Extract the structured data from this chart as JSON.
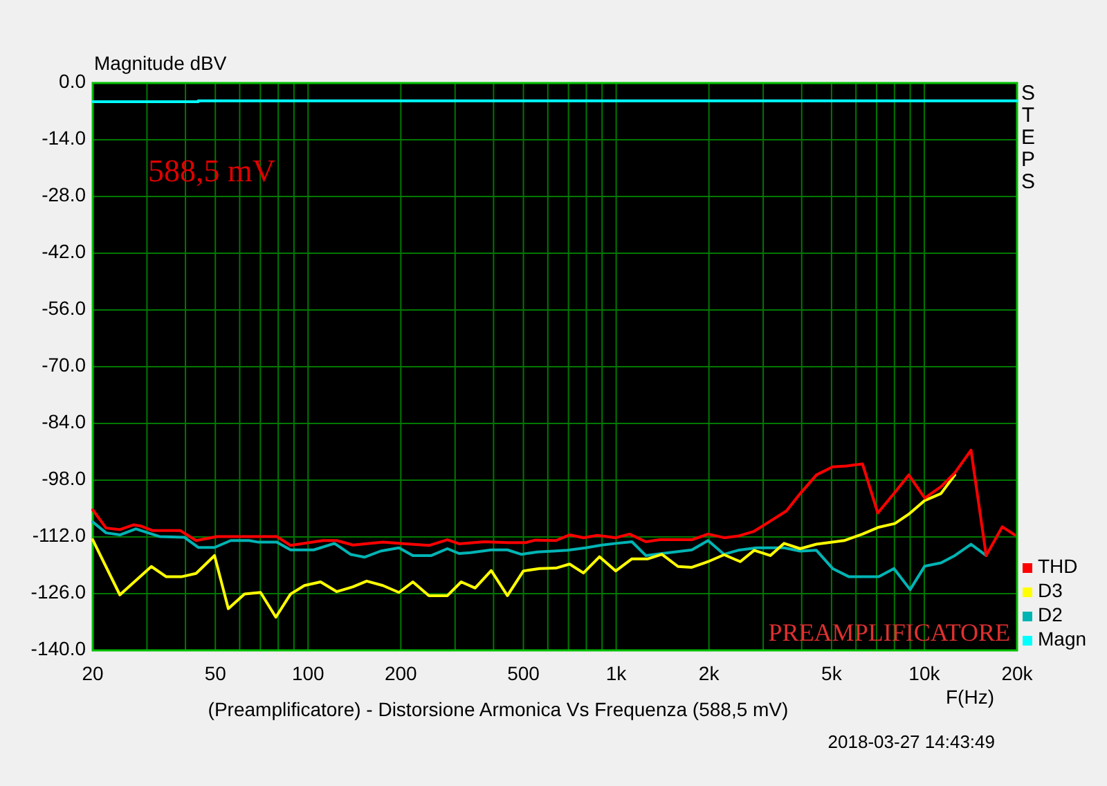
{
  "chart_data": {
    "type": "line",
    "title": "(Preamplificatore) - Distorsione Armonica Vs Frequenza (588,5 mV)",
    "xlabel": "F(Hz)",
    "ylabel": "Magnitude dBV",
    "annotations": [
      "588,5 mV",
      "PREAMPLIFICATORE",
      "STEPS",
      "2018-03-27 14:43:49"
    ],
    "log": "x",
    "grid": true,
    "legend": "right",
    "xlim": [
      20,
      20000
    ],
    "xticks": [
      20,
      {
        "value": 30,
        "label": null
      },
      {
        "value": 40,
        "label": null
      },
      50,
      {
        "value": 60,
        "label": null
      },
      {
        "value": 70,
        "label": null
      },
      {
        "value": 80,
        "label": null
      },
      {
        "value": 90,
        "label": null
      },
      100,
      200,
      {
        "value": 300,
        "label": null
      },
      {
        "value": 400,
        "label": null
      },
      500,
      {
        "value": 600,
        "label": null
      },
      {
        "value": 700,
        "label": null
      },
      {
        "value": 800,
        "label": null
      },
      {
        "value": 900,
        "label": null
      },
      {
        "value": 1000,
        "label": "1k"
      },
      {
        "value": 2000,
        "label": "2k"
      },
      {
        "value": 3000,
        "label": null
      },
      {
        "value": 4000,
        "label": null
      },
      {
        "value": 5000,
        "label": "5k"
      },
      {
        "value": 6000,
        "label": null
      },
      {
        "value": 7000,
        "label": null
      },
      {
        "value": 8000,
        "label": null
      },
      {
        "value": 9000,
        "label": null
      },
      {
        "value": 10000,
        "label": "10k"
      },
      {
        "value": 20000,
        "label": "20k"
      }
    ],
    "ylim": [
      -140,
      0
    ],
    "yticks": [
      {
        "value": -140,
        "label": "-140.0"
      },
      {
        "value": -126,
        "label": "-126.0"
      },
      {
        "value": -112,
        "label": "-112.0"
      },
      {
        "value": -98,
        "label": "-98.0"
      },
      {
        "value": -84,
        "label": "-84.0"
      },
      {
        "value": -70,
        "label": "-70.0"
      },
      {
        "value": -56,
        "label": "-56.0"
      },
      {
        "value": -42,
        "label": "-42.0"
      },
      {
        "value": -28,
        "label": "-28.0"
      },
      {
        "value": -14,
        "label": "-14.0"
      },
      {
        "value": 0,
        "label": "0.0"
      }
    ],
    "series": [
      {
        "name": "THD",
        "color": "#ff0000",
        "x": [
          20,
          22.1,
          24.5,
          27.2,
          28.6,
          31.2,
          38.4,
          43.3,
          50.6,
          79.1,
          87.7,
          111.7,
          123.8,
          139.8,
          174.9,
          207.6,
          246.8,
          283.2,
          309,
          373.2,
          443.6,
          509,
          545.8,
          637,
          706,
          783,
          869,
          997,
          1105,
          1248,
          1384,
          1760,
          1987,
          2240,
          2484,
          2804,
          3164,
          3568,
          3956,
          4466,
          5040,
          5588,
          6302,
          7062,
          7970,
          8900,
          10036,
          11324,
          12562,
          14176,
          15878,
          17904,
          19648
        ],
        "values": [
          -105.3,
          -109.8,
          -110.2,
          -109.0,
          -109.3,
          -110.4,
          -110.4,
          -112.9,
          -111.9,
          -111.9,
          -114.1,
          -112.9,
          -112.9,
          -114.0,
          -113.3,
          -113.7,
          -114.1,
          -112.7,
          -113.7,
          -113.2,
          -113.4,
          -113.4,
          -112.8,
          -112.9,
          -111.5,
          -112.2,
          -111.6,
          -112.2,
          -111.3,
          -113.2,
          -112.7,
          -112.7,
          -111.3,
          -112.2,
          -111.8,
          -110.6,
          -108.1,
          -105.6,
          -101.3,
          -96.7,
          -94.7,
          -94.5,
          -94.0,
          -106.1,
          -101.3,
          -96.7,
          -102.4,
          -99.6,
          -96.2,
          -90.6,
          -116.6,
          -109.5,
          -111.5
        ]
      },
      {
        "name": "D3",
        "color": "#ffff00",
        "x": [
          20,
          24.5,
          31.0,
          34.6,
          39.0,
          43.3,
          49.7,
          55.1,
          62.2,
          70.1,
          78.6,
          87.7,
          97.3,
          109.8,
          123.8,
          139.8,
          155,
          174.9,
          197.2,
          218.8,
          246.8,
          283.2,
          314,
          348.4,
          393,
          443.6,
          500,
          564,
          637,
          706,
          783,
          883,
          997,
          1125,
          1268,
          1407,
          1587,
          1760,
          1987,
          2240,
          2528,
          2804,
          3164,
          3508,
          3956,
          4466,
          5492,
          6302,
          7112,
          8028,
          8900,
          10036,
          11324,
          12562
        ],
        "values": [
          -112.7,
          -126.3,
          -119.3,
          -121.8,
          -121.8,
          -121.0,
          -116.6,
          -129.7,
          -126.1,
          -125.7,
          -131.8,
          -126.1,
          -124.0,
          -123.1,
          -125.5,
          -124.3,
          -122.9,
          -124.0,
          -125.7,
          -123.1,
          -126.5,
          -126.5,
          -123.1,
          -124.6,
          -120.3,
          -126.5,
          -120.4,
          -119.8,
          -119.7,
          -118.7,
          -120.9,
          -116.9,
          -120.4,
          -117.4,
          -117.4,
          -116.3,
          -119.3,
          -119.5,
          -118.1,
          -116.4,
          -118.1,
          -115.3,
          -116.6,
          -113.6,
          -114.9,
          -113.8,
          -112.9,
          -111.3,
          -109.6,
          -108.7,
          -106.4,
          -103.0,
          -101.3,
          -96.7
        ]
      },
      {
        "name": "D2",
        "color": "#00b4b4",
        "x": [
          20,
          22.1,
          24.5,
          27.6,
          32.9,
          39.7,
          44.0,
          49.7,
          56.1,
          64.3,
          69.0,
          79.1,
          87.7,
          104.3,
          121.8,
          137.3,
          152.3,
          171.9,
          197.2,
          218.8,
          251.2,
          283.2,
          309,
          336.6,
          393,
          443.6,
          492,
          554.6,
          626,
          694,
          796,
          899,
          997,
          1125,
          1248,
          1407,
          1760,
          1987,
          2240,
          2484,
          2854,
          3508,
          3956,
          4466,
          5040,
          5682,
          7112,
          7970,
          8994,
          10036,
          11324,
          12562,
          14176,
          15878
        ],
        "values": [
          -108.3,
          -111.0,
          -111.5,
          -110.0,
          -111.9,
          -112.1,
          -114.6,
          -114.6,
          -112.9,
          -112.9,
          -113.3,
          -113.3,
          -115.2,
          -115.2,
          -113.6,
          -116.3,
          -117.0,
          -115.5,
          -114.7,
          -116.6,
          -116.6,
          -114.9,
          -116.1,
          -115.9,
          -115.2,
          -115.2,
          -116.3,
          -115.7,
          -115.5,
          -115.3,
          -114.7,
          -114.0,
          -113.6,
          -113.2,
          -116.6,
          -116.1,
          -115.2,
          -112.9,
          -116.3,
          -115.3,
          -114.7,
          -114.7,
          -115.5,
          -115.3,
          -119.8,
          -121.8,
          -121.8,
          -119.8,
          -125.0,
          -119.2,
          -118.4,
          -116.6,
          -113.8,
          -116.6
        ]
      },
      {
        "name": "Magn",
        "color": "#00ffff",
        "x": [
          20,
          44,
          44,
          20000
        ],
        "values": [
          -4.6,
          -4.6,
          -4.4,
          -4.4
        ]
      }
    ]
  }
}
